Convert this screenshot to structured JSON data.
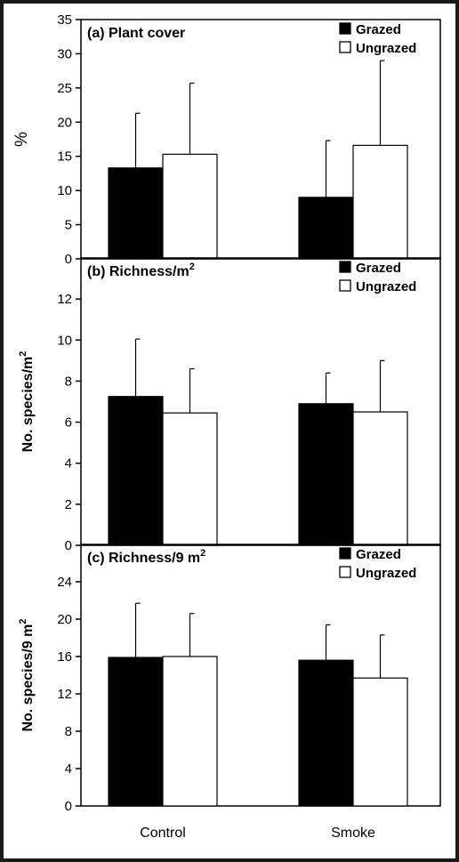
{
  "chart_data": [
    {
      "type": "bar",
      "title": "(a) Plant cover",
      "ylabel": "%",
      "categories": [
        "Control",
        "Smoke"
      ],
      "ylim": [
        0,
        35
      ],
      "yticks": [
        "0",
        "5",
        "10",
        "15",
        "20",
        "25",
        "30",
        "35"
      ],
      "legend_position": "top-right",
      "series": [
        {
          "name": "Grazed",
          "color": "#000000",
          "values": [
            13.3,
            9.0
          ],
          "error": [
            8.0,
            8.3
          ]
        },
        {
          "name": "Ungrazed",
          "color": "#ffffff",
          "values": [
            15.3,
            16.6
          ],
          "error": [
            10.4,
            12.4
          ]
        }
      ]
    },
    {
      "type": "bar",
      "title": "(b) Richness/m",
      "title_sup": "2",
      "ylabel": "No. species/m",
      "ylabel_sup": "2",
      "categories": [
        "Control",
        "Smoke"
      ],
      "ylim": [
        0,
        14
      ],
      "yticks": [
        "0",
        "2",
        "4",
        "6",
        "8",
        "10",
        "12"
      ],
      "legend_position": "top-right",
      "series": [
        {
          "name": "Grazed",
          "color": "#000000",
          "values": [
            7.25,
            6.9
          ],
          "error": [
            2.8,
            1.5
          ]
        },
        {
          "name": "Ungrazed",
          "color": "#ffffff",
          "values": [
            6.45,
            6.5
          ],
          "error": [
            2.15,
            2.5
          ]
        }
      ]
    },
    {
      "type": "bar",
      "title": "(c) Richness/9 m",
      "title_sup": "2",
      "ylabel": "No. species/9 m",
      "ylabel_sup": "2",
      "categories": [
        "Control",
        "Smoke"
      ],
      "ylim": [
        0,
        28
      ],
      "yticks": [
        "0",
        "4",
        "8",
        "12",
        "16",
        "20",
        "24"
      ],
      "legend_position": "top-right",
      "series": [
        {
          "name": "Grazed",
          "color": "#000000",
          "values": [
            15.9,
            15.6
          ],
          "error": [
            5.8,
            3.8
          ]
        },
        {
          "name": "Ungrazed",
          "color": "#ffffff",
          "values": [
            16.0,
            13.7
          ],
          "error": [
            4.6,
            4.6
          ]
        }
      ]
    }
  ]
}
